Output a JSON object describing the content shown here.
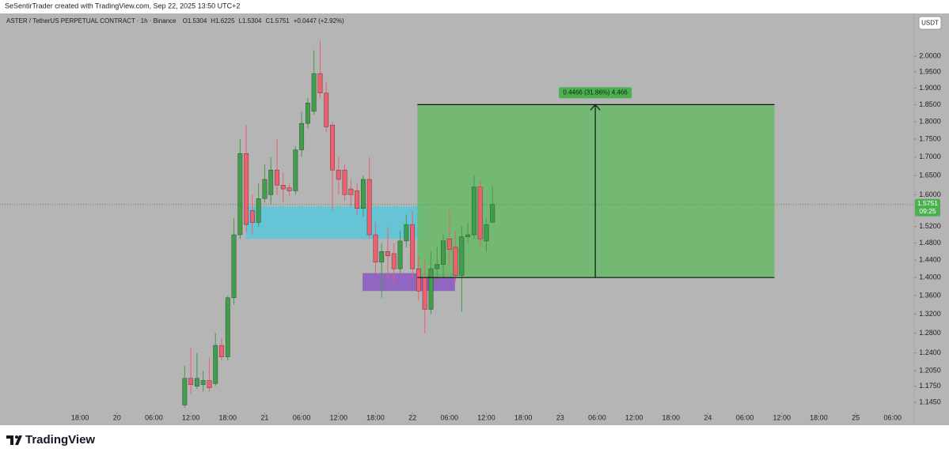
{
  "chart_data": {
    "type": "candlestick",
    "attribution": "SeSentirTrader created with TradingView.com, Sep 22, 2025 13:50 UTC+2",
    "legend": "ASTER / TetherUS PERPETUAL CONTRACT · 1h · Binance",
    "legend_values": [
      "O1.5304",
      "H1.6225",
      "L1.5304",
      "C1.5751",
      "+0.0447 (+2.92%)"
    ],
    "currency_button": "USDT",
    "brand": "TradingView",
    "log_scale": true,
    "grid": false,
    "up_color": "#3f9e4a",
    "down_color": "#ef5f6d",
    "x": [
      11,
      12,
      13,
      14,
      15,
      16,
      17,
      18,
      19,
      20,
      21,
      22,
      23,
      24,
      25,
      26,
      27,
      28,
      29,
      30,
      31,
      32,
      33,
      34,
      35,
      36,
      37,
      38,
      39,
      40,
      41,
      42,
      43,
      44,
      45,
      46,
      47,
      48,
      49,
      50,
      51,
      52,
      53,
      54,
      55,
      56,
      57,
      58,
      59,
      60,
      61
    ],
    "open": [
      1.14,
      1.19,
      1.175,
      1.178,
      1.186,
      1.18,
      1.255,
      1.232,
      1.355,
      1.5,
      1.71,
      1.56,
      1.53,
      1.59,
      1.6,
      1.665,
      1.625,
      1.618,
      1.61,
      1.72,
      1.795,
      1.83,
      1.945,
      1.885,
      1.79,
      1.665,
      1.665,
      1.615,
      1.61,
      1.565,
      1.64,
      1.5,
      1.435,
      1.46,
      1.455,
      1.42,
      1.485,
      1.525,
      1.42,
      1.4,
      1.33,
      1.42,
      1.43,
      1.49,
      1.47,
      1.405,
      1.495,
      1.5,
      1.62,
      1.485,
      1.5304
    ],
    "high": [
      1.215,
      1.25,
      1.24,
      1.205,
      1.23,
      1.28,
      1.27,
      1.36,
      1.54,
      1.75,
      1.79,
      1.6,
      1.63,
      1.68,
      1.7,
      1.75,
      1.66,
      1.63,
      1.73,
      1.83,
      1.87,
      2.02,
      2.05,
      1.92,
      1.8,
      1.7,
      1.68,
      1.64,
      1.63,
      1.65,
      1.7,
      1.53,
      1.48,
      1.52,
      1.48,
      1.51,
      1.55,
      1.56,
      1.45,
      1.44,
      1.46,
      1.47,
      1.5,
      1.56,
      1.51,
      1.52,
      1.53,
      1.65,
      1.64,
      1.54,
      1.6225
    ],
    "low": [
      1.135,
      1.16,
      1.17,
      1.165,
      1.165,
      1.175,
      1.225,
      1.225,
      1.34,
      1.49,
      1.505,
      1.5,
      1.52,
      1.58,
      1.575,
      1.6,
      1.58,
      1.595,
      1.6,
      1.7,
      1.78,
      1.82,
      1.87,
      1.77,
      1.56,
      1.6,
      1.585,
      1.57,
      1.55,
      1.545,
      1.49,
      1.41,
      1.355,
      1.4,
      1.39,
      1.41,
      1.47,
      1.4,
      1.35,
      1.28,
      1.32,
      1.39,
      1.4,
      1.43,
      1.39,
      1.325,
      1.48,
      1.49,
      1.47,
      1.46,
      1.5304
    ],
    "close": [
      1.19,
      1.178,
      1.19,
      1.186,
      1.172,
      1.255,
      1.232,
      1.355,
      1.5,
      1.71,
      1.525,
      1.53,
      1.59,
      1.64,
      1.665,
      1.625,
      1.615,
      1.61,
      1.72,
      1.795,
      1.855,
      1.945,
      1.885,
      1.785,
      1.665,
      1.64,
      1.6,
      1.6,
      1.565,
      1.64,
      1.5,
      1.435,
      1.46,
      1.45,
      1.42,
      1.485,
      1.525,
      1.42,
      1.37,
      1.33,
      1.42,
      1.43,
      1.485,
      1.465,
      1.405,
      1.495,
      1.5,
      1.62,
      1.49,
      1.525,
      1.5751
    ],
    "zones": [
      {
        "color": "#5cc7d9",
        "x": [
          20.9,
          49.9
        ],
        "y": [
          1.49,
          1.57
        ]
      },
      {
        "color": "#8c5dc2",
        "x": [
          39.9,
          54.9
        ],
        "y": [
          1.37,
          1.41
        ]
      }
    ],
    "target": {
      "color": "#6cb86c",
      "x": [
        48.8,
        106.8
      ],
      "y": [
        1.4,
        1.85
      ],
      "arrow_x": 77.7,
      "label": "0.4466 (31.86%) 4,466"
    },
    "last_price": {
      "value": 1.5751,
      "label": "1.5751"
    },
    "countdown": "09:25",
    "xlim": [
      -19,
      129.5
    ],
    "ylim": [
      1.132,
      2.143
    ],
    "xticks": [
      {
        "value": -6,
        "label": "18:00"
      },
      {
        "value": 0,
        "label": "20"
      },
      {
        "value": 6,
        "label": "06:00"
      },
      {
        "value": 12,
        "label": "12:00"
      },
      {
        "value": 18,
        "label": "18:00"
      },
      {
        "value": 24,
        "label": "21"
      },
      {
        "value": 30,
        "label": "06:00"
      },
      {
        "value": 36,
        "label": "12:00"
      },
      {
        "value": 42,
        "label": "18:00"
      },
      {
        "value": 48,
        "label": "22"
      },
      {
        "value": 54,
        "label": "06:00"
      },
      {
        "value": 60,
        "label": "12:00"
      },
      {
        "value": 66,
        "label": "18:00"
      },
      {
        "value": 72,
        "label": "23"
      },
      {
        "value": 78,
        "label": "06:00"
      },
      {
        "value": 84,
        "label": "12:00"
      },
      {
        "value": 90,
        "label": "18:00"
      },
      {
        "value": 96,
        "label": "24"
      },
      {
        "value": 102,
        "label": "06:00"
      },
      {
        "value": 108,
        "label": "12:00"
      },
      {
        "value": 114,
        "label": "18:00"
      },
      {
        "value": 120,
        "label": "25"
      },
      {
        "value": 126,
        "label": "06:00"
      }
    ],
    "yticks": [
      {
        "value": 2,
        "label": "2.0000"
      },
      {
        "value": 1.95,
        "label": "1.9500"
      },
      {
        "value": 1.9,
        "label": "1.9000"
      },
      {
        "value": 1.85,
        "label": "1.8500"
      },
      {
        "value": 1.8,
        "label": "1.8000"
      },
      {
        "value": 1.75,
        "label": "1.7500"
      },
      {
        "value": 1.7,
        "label": "1.7000"
      },
      {
        "value": 1.65,
        "label": "1.6500"
      },
      {
        "value": 1.6,
        "label": "1.6000"
      },
      {
        "value": 1.52,
        "label": "1.5200"
      },
      {
        "value": 1.48,
        "label": "1.4800"
      },
      {
        "value": 1.44,
        "label": "1.4400"
      },
      {
        "value": 1.4,
        "label": "1.4000"
      },
      {
        "value": 1.36,
        "label": "1.3600"
      },
      {
        "value": 1.32,
        "label": "1.3200"
      },
      {
        "value": 1.28,
        "label": "1.2800"
      },
      {
        "value": 1.24,
        "label": "1.2400"
      },
      {
        "value": 1.205,
        "label": "1.2050"
      },
      {
        "value": 1.175,
        "label": "1.1750"
      },
      {
        "value": 1.145,
        "label": "1.1450"
      }
    ]
  }
}
